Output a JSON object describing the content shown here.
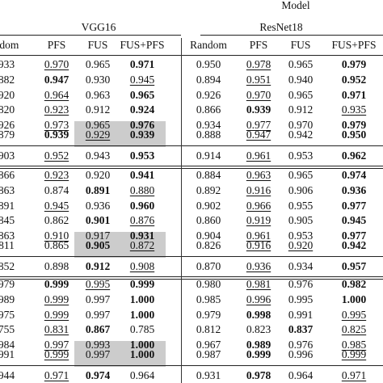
{
  "header": {
    "model": "Model",
    "vgg16": "VGG16",
    "resnet18": "ResNet18",
    "cols": [
      "ndom",
      "PFS",
      "FUS",
      "FUS+PFS",
      "Random",
      "PFS",
      "FUS",
      "FUS+PFS"
    ]
  },
  "blocks": [
    {
      "rows": [
        [
          {
            "t": "933"
          },
          {
            "t": "0.970",
            "u": 1
          },
          {
            "t": "0.965"
          },
          {
            "t": "0.971",
            "b": 1
          },
          {
            "t": "0.950"
          },
          {
            "t": "0.978",
            "u": 1
          },
          {
            "t": "0.965"
          },
          {
            "t": "0.979",
            "b": 1
          }
        ],
        [
          {
            "t": "882"
          },
          {
            "t": "0.947",
            "b": 1
          },
          {
            "t": "0.930"
          },
          {
            "t": "0.945",
            "u": 1
          },
          {
            "t": "0.894"
          },
          {
            "t": "0.951",
            "u": 1
          },
          {
            "t": "0.940"
          },
          {
            "t": "0.952",
            "b": 1
          }
        ],
        [
          {
            "t": "920"
          },
          {
            "t": "0.964",
            "u": 1
          },
          {
            "t": "0.963"
          },
          {
            "t": "0.965",
            "b": 1
          },
          {
            "t": "0.926"
          },
          {
            "t": "0.970",
            "u": 1
          },
          {
            "t": "0.965"
          },
          {
            "t": "0.971",
            "b": 1
          }
        ],
        [
          {
            "t": "820"
          },
          {
            "t": "0.923",
            "u": 1
          },
          {
            "t": "0.912"
          },
          {
            "t": "0.924",
            "b": 1
          },
          {
            "t": "0.866"
          },
          {
            "t": "0.939",
            "b": 1
          },
          {
            "t": "0.912"
          },
          {
            "t": "0.935",
            "u": 1
          }
        ],
        [
          {
            "t": "926"
          },
          {
            "t": "0.973",
            "u": 1
          },
          {
            "t": "0.965"
          },
          {
            "t": "0.976",
            "b": 1
          },
          {
            "t": "0.934"
          },
          {
            "t": "0.977",
            "u": 1
          },
          {
            "t": "0.970"
          },
          {
            "t": "0.979",
            "b": 1
          }
        ]
      ],
      "avg": [
        {
          "t": "879"
        },
        {
          "t": "0.939",
          "b": 1
        },
        {
          "t": "0.929",
          "u": 1,
          "s": 1
        },
        {
          "t": "0.939",
          "b": 1,
          "s": 1
        },
        {
          "t": "0.888"
        },
        {
          "t": "0.947",
          "u": 1
        },
        {
          "t": "0.942"
        },
        {
          "t": "0.950",
          "b": 1
        }
      ],
      "total": [
        {
          "t": "903"
        },
        {
          "t": "0.952",
          "u": 1
        },
        {
          "t": "0.943"
        },
        {
          "t": "0.953",
          "b": 1
        },
        {
          "t": "0.914"
        },
        {
          "t": "0.961",
          "u": 1
        },
        {
          "t": "0.953"
        },
        {
          "t": "0.962",
          "b": 1
        }
      ]
    },
    {
      "rows": [
        [
          {
            "t": "866"
          },
          {
            "t": "0.923",
            "u": 1
          },
          {
            "t": "0.920"
          },
          {
            "t": "0.941",
            "b": 1
          },
          {
            "t": "0.884"
          },
          {
            "t": "0.963",
            "u": 1
          },
          {
            "t": "0.965"
          },
          {
            "t": "0.974",
            "b": 1
          }
        ],
        [
          {
            "t": "863"
          },
          {
            "t": "0.874"
          },
          {
            "t": "0.891",
            "b": 1
          },
          {
            "t": "0.880",
            "u": 1
          },
          {
            "t": "0.892"
          },
          {
            "t": "0.916",
            "u": 1
          },
          {
            "t": "0.906"
          },
          {
            "t": "0.936",
            "b": 1
          }
        ],
        [
          {
            "t": "891"
          },
          {
            "t": "0.945",
            "u": 1
          },
          {
            "t": "0.936"
          },
          {
            "t": "0.960",
            "b": 1
          },
          {
            "t": "0.902"
          },
          {
            "t": "0.966",
            "u": 1
          },
          {
            "t": "0.955"
          },
          {
            "t": "0.977",
            "b": 1
          }
        ],
        [
          {
            "t": "845"
          },
          {
            "t": "0.862"
          },
          {
            "t": "0.901",
            "b": 1
          },
          {
            "t": "0.876",
            "u": 1
          },
          {
            "t": "0.860"
          },
          {
            "t": "0.919",
            "u": 1
          },
          {
            "t": "0.905"
          },
          {
            "t": "0.945",
            "b": 1
          }
        ],
        [
          {
            "t": "863"
          },
          {
            "t": "0.910",
            "u": 1
          },
          {
            "t": "0.917"
          },
          {
            "t": "0.931",
            "b": 1
          },
          {
            "t": "0.904"
          },
          {
            "t": "0.961",
            "u": 1
          },
          {
            "t": "0.953"
          },
          {
            "t": "0.977",
            "b": 1
          }
        ]
      ],
      "avg": [
        {
          "t": "811"
        },
        {
          "t": "0.865"
        },
        {
          "t": "0.905",
          "b": 1,
          "s": 1
        },
        {
          "t": "0.872",
          "u": 1,
          "s": 1
        },
        {
          "t": "0.826"
        },
        {
          "t": "0.916",
          "u": 1
        },
        {
          "t": "0.920",
          "u": 1
        },
        {
          "t": "0.942",
          "b": 1
        }
      ],
      "total": [
        {
          "t": "852"
        },
        {
          "t": "0.898"
        },
        {
          "t": "0.912",
          "b": 1
        },
        {
          "t": "0.908",
          "u": 1
        },
        {
          "t": "0.870"
        },
        {
          "t": "0.936",
          "u": 1
        },
        {
          "t": "0.934"
        },
        {
          "t": "0.957",
          "b": 1
        }
      ]
    },
    {
      "rows": [
        [
          {
            "t": "979"
          },
          {
            "t": "0.999",
            "b": 1
          },
          {
            "t": "0.995",
            "u": 1
          },
          {
            "t": "0.999",
            "b": 1
          },
          {
            "t": "0.980"
          },
          {
            "t": "0.981",
            "u": 1
          },
          {
            "t": "0.976"
          },
          {
            "t": "0.982",
            "b": 1
          }
        ],
        [
          {
            "t": "989"
          },
          {
            "t": "0.999",
            "u": 1
          },
          {
            "t": "0.997"
          },
          {
            "t": "1.000",
            "b": 1
          },
          {
            "t": "0.985"
          },
          {
            "t": "0.996",
            "u": 1
          },
          {
            "t": "0.995"
          },
          {
            "t": "1.000",
            "b": 1
          }
        ],
        [
          {
            "t": "975"
          },
          {
            "t": "0.999",
            "u": 1
          },
          {
            "t": "0.997"
          },
          {
            "t": "1.000",
            "b": 1
          },
          {
            "t": "0.979"
          },
          {
            "t": "0.998",
            "b": 1
          },
          {
            "t": "0.991"
          },
          {
            "t": "0.995",
            "u": 1
          }
        ],
        [
          {
            "t": "755"
          },
          {
            "t": "0.831",
            "u": 1
          },
          {
            "t": "0.867",
            "b": 1
          },
          {
            "t": "0.785"
          },
          {
            "t": "0.812"
          },
          {
            "t": "0.823"
          },
          {
            "t": "0.837",
            "b": 1
          },
          {
            "t": "0.825",
            "u": 1
          }
        ],
        [
          {
            "t": "984"
          },
          {
            "t": "0.997",
            "u": 1
          },
          {
            "t": "0.993"
          },
          {
            "t": "1.000",
            "b": 1
          },
          {
            "t": "0.967"
          },
          {
            "t": "0.989",
            "b": 1
          },
          {
            "t": "0.976"
          },
          {
            "t": "0.985",
            "u": 1
          }
        ]
      ],
      "avg": [
        {
          "t": "991"
        },
        {
          "t": "0.999",
          "u": 1
        },
        {
          "t": "0.997",
          "s": 1
        },
        {
          "t": "1.000",
          "b": 1,
          "s": 1
        },
        {
          "t": "0.987"
        },
        {
          "t": "0.999",
          "b": 1
        },
        {
          "t": "0.996"
        },
        {
          "t": "0.999",
          "u": 1
        }
      ],
      "total": [
        {
          "t": "944"
        },
        {
          "t": "0.971",
          "u": 1
        },
        {
          "t": "0.974",
          "b": 1
        },
        {
          "t": "0.964"
        },
        {
          "t": "0.931"
        },
        {
          "t": "0.978",
          "b": 1
        },
        {
          "t": "0.964"
        },
        {
          "t": "0.971",
          "u": 1
        }
      ]
    }
  ]
}
